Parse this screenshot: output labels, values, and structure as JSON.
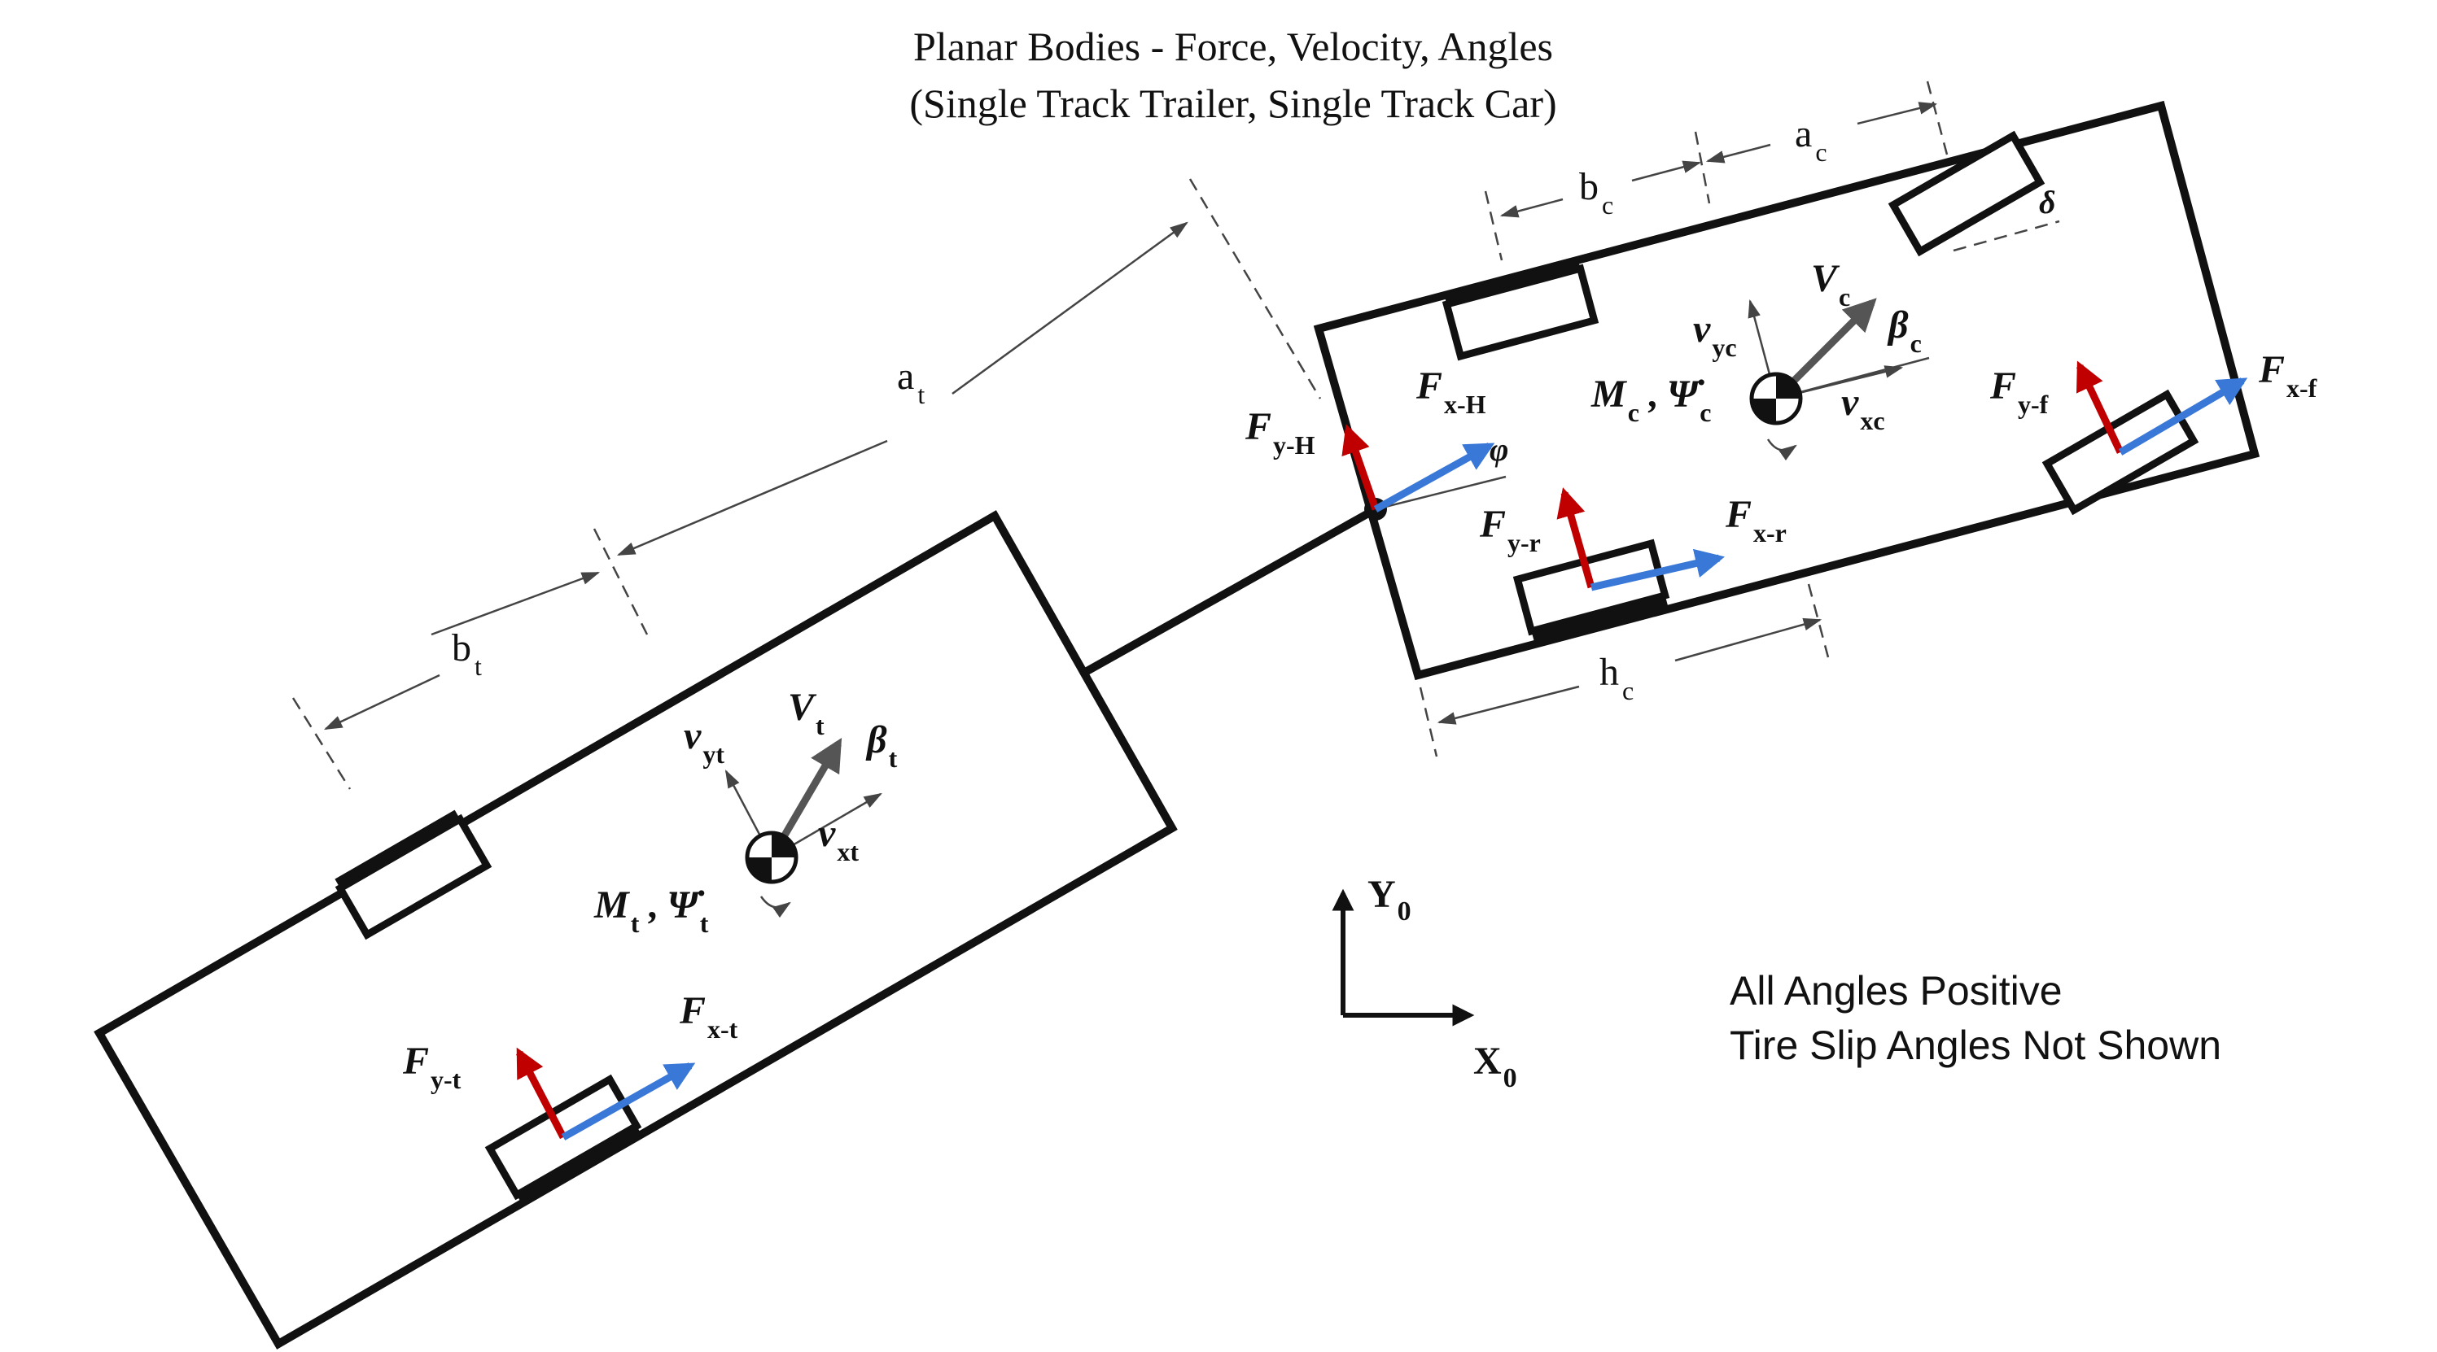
{
  "title": {
    "line1": "Planar Bodies - Force, Velocity, Angles",
    "line2": "(Single Track Trailer, Single Track Car)"
  },
  "notes": {
    "line1": "All Angles Positive",
    "line2": "Tire Slip Angles Not Shown"
  },
  "colors": {
    "lateral_force": "#c00000",
    "longitudinal_force": "#3a78d8",
    "velocity": "#555555",
    "outline": "#111111"
  },
  "frame": {
    "y": {
      "main": "Y",
      "sub": "0"
    },
    "x": {
      "main": "X",
      "sub": "0"
    }
  },
  "car": {
    "dims": {
      "a": {
        "main": "a",
        "sub": "c"
      },
      "b": {
        "main": "b",
        "sub": "c"
      },
      "h": {
        "main": "h",
        "sub": "c"
      }
    },
    "steer": {
      "main": "δ"
    },
    "Vc": {
      "main": "V",
      "sub": "c"
    },
    "beta": {
      "main": "β",
      "sub": "c"
    },
    "vyc": {
      "main": "v",
      "sub": "yc"
    },
    "vxc": {
      "main": "v",
      "sub": "xc"
    },
    "moment": {
      "M": "M",
      "M_sub": "c",
      "psi": "Ψ̇",
      "psi_sub": "c",
      "sep": " ,"
    },
    "Fyf": {
      "main": "F",
      "sub": "y-f"
    },
    "Fxf": {
      "main": "F",
      "sub": "x-f"
    },
    "Fyr": {
      "main": "F",
      "sub": "y-r"
    },
    "Fxr": {
      "main": "F",
      "sub": "x-r"
    }
  },
  "hitch": {
    "FyH": {
      "main": "F",
      "sub": "y-H"
    },
    "FxH": {
      "main": "F",
      "sub": "x-H"
    },
    "phi": {
      "main": "φ"
    }
  },
  "trailer": {
    "dims": {
      "a": {
        "main": "a",
        "sub": "t"
      },
      "b": {
        "main": "b",
        "sub": "t"
      }
    },
    "Vt": {
      "main": "V",
      "sub": "t"
    },
    "beta": {
      "main": "β",
      "sub": "t"
    },
    "vyt": {
      "main": "v",
      "sub": "yt"
    },
    "vxt": {
      "main": "v",
      "sub": "xt"
    },
    "moment": {
      "M": "M",
      "M_sub": "t",
      "psi": "Ψ̇",
      "psi_sub": "t",
      "sep": " ,"
    },
    "Fyt": {
      "main": "F",
      "sub": "y-t"
    },
    "Fxt": {
      "main": "F",
      "sub": "x-t"
    }
  }
}
